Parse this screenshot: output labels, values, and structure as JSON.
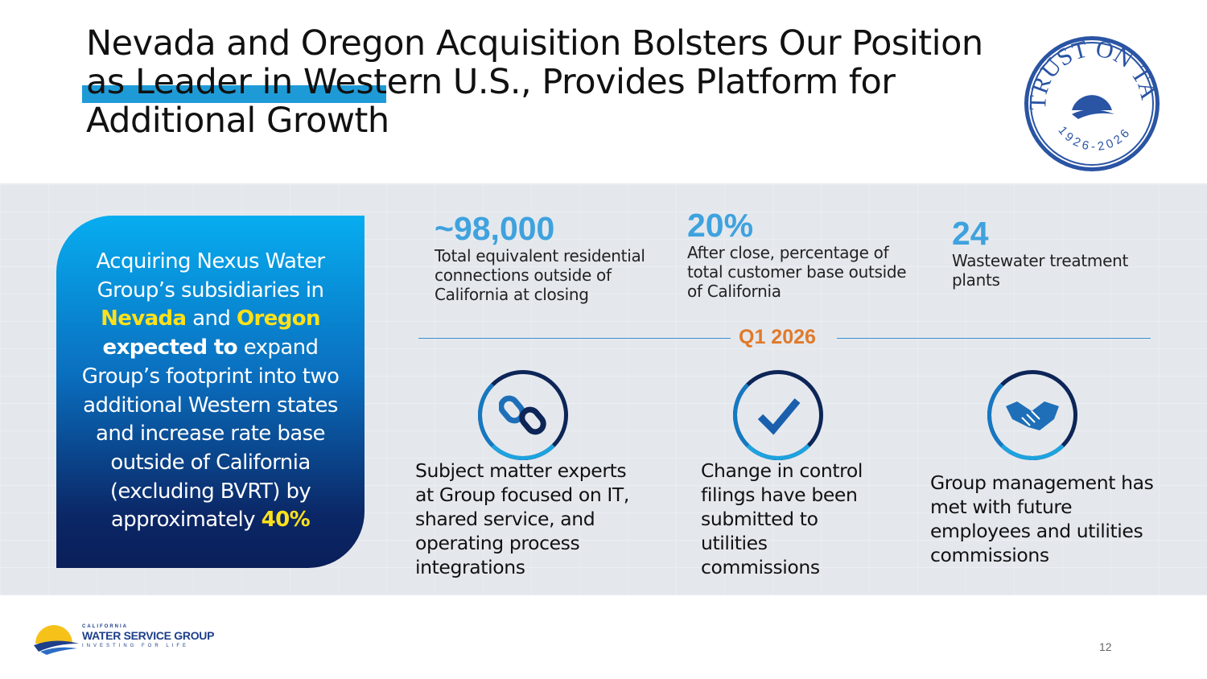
{
  "title": {
    "part1": "Nevada and Oregon Acquisition Bolsters Our Position as",
    "highlight": "Leader in Western",
    "part2": " U.S., Provides Platform for Additional Growth"
  },
  "seal": {
    "text": "TRUST ON TAP",
    "years": "1926-2026"
  },
  "leftbox": {
    "t1": "Acquiring Nexus Water Group’s subsidiaries in ",
    "nevada": "Nevada",
    "and": " and ",
    "oregon": "Oregon",
    "expected": "expected to",
    "t2": " expand Group’s footprint into two additional Western states and increase rate base outside of California (excluding BVRT) by approximately ",
    "pct": "40%"
  },
  "stats": [
    {
      "num": "~98,000",
      "desc": "Total equivalent residential connections outside of California at closing"
    },
    {
      "num": "20%",
      "desc": "After close, percentage of total customer base outside of California"
    },
    {
      "num": "24",
      "desc": "Wastewater treatment plants"
    }
  ],
  "milestone": "Q1 2026",
  "items": [
    {
      "icon": "chain-link-icon",
      "text": "Subject matter experts at Group focused on IT, shared service, and operating process integrations"
    },
    {
      "icon": "checkmark-icon",
      "text": "Change in control filings have been submitted to utilities commissions"
    },
    {
      "icon": "handshake-icon",
      "text": "Group management has met with future employees and utilities commissions"
    }
  ],
  "footer": {
    "logo_top": "CALIFORNIA",
    "logo_main": "WATER SERVICE GROUP",
    "logo_tag": "INVESTING FOR LIFE",
    "page": "12"
  },
  "colors": {
    "accent": "#3fa2de",
    "highlight": "#1e9bd7",
    "orange": "#e07a2a",
    "navy": "#0d2557",
    "yellow": "#ffe11a"
  }
}
